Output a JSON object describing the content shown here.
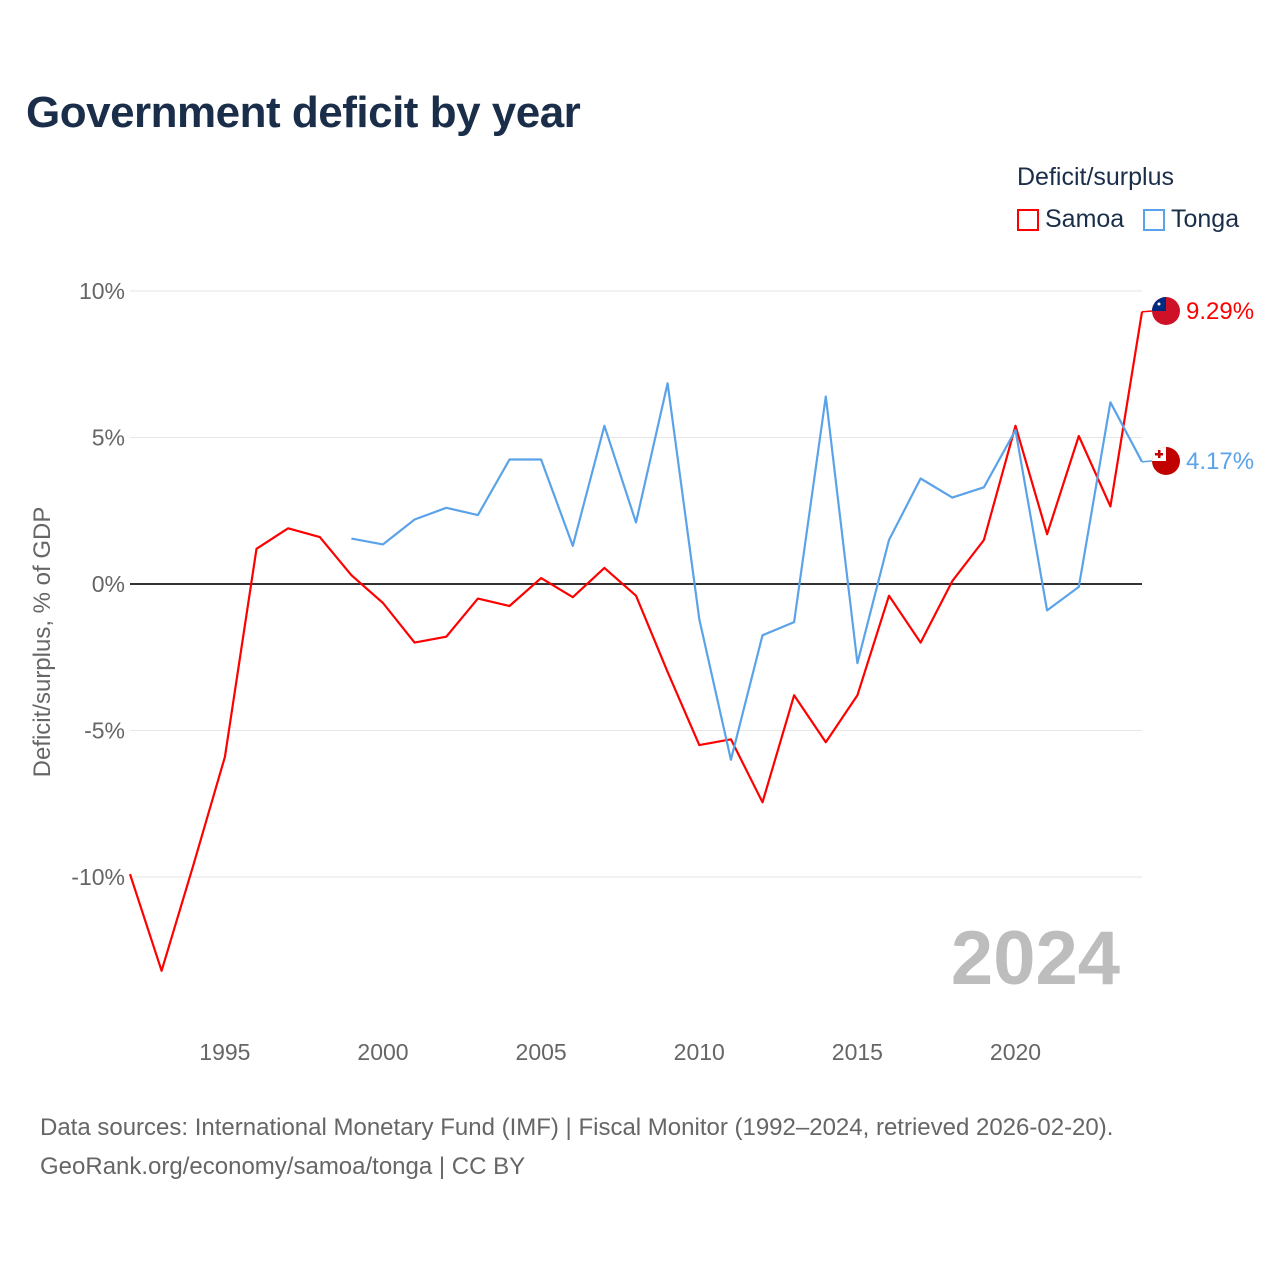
{
  "title": "Government deficit by year",
  "legend": {
    "title": "Deficit/surplus",
    "items": [
      {
        "name": "Samoa",
        "color": "#ff0000"
      },
      {
        "name": "Tonga",
        "color": "#5ba3e8"
      }
    ]
  },
  "footer": {
    "line1": "Data sources: International Monetary Fund (IMF) | Fiscal Monitor (1992–2024, retrieved 2026-02-20).",
    "line2": "GeoRank.org/economy/samoa/tonga | CC BY"
  },
  "chart_data": {
    "type": "line",
    "title": "Government deficit by year",
    "ylabel": "Deficit/surplus, % of GDP",
    "xlabel": "",
    "xlim": [
      1992,
      2024
    ],
    "ylim": [
      -13.5,
      10
    ],
    "xticks": [
      1995,
      2000,
      2005,
      2010,
      2015,
      2020
    ],
    "yticks": [
      {
        "v": 10,
        "label": "10%"
      },
      {
        "v": 5,
        "label": "5%"
      },
      {
        "v": 0,
        "label": "0%"
      },
      {
        "v": -5,
        "label": "-5%"
      },
      {
        "v": -10,
        "label": "-10%"
      }
    ],
    "year_label": "2024",
    "series": [
      {
        "name": "Samoa",
        "color": "#ff0000",
        "end_label": "9.29%",
        "x": [
          1992,
          1993,
          1994,
          1995,
          1996,
          1997,
          1998,
          1999,
          2000,
          2001,
          2002,
          2003,
          2004,
          2005,
          2006,
          2007,
          2008,
          2009,
          2010,
          2011,
          2012,
          2013,
          2014,
          2015,
          2016,
          2017,
          2018,
          2019,
          2020,
          2021,
          2022,
          2023,
          2024
        ],
        "values": [
          -9.9,
          -13.2,
          -9.6,
          -5.9,
          1.2,
          1.9,
          1.6,
          0.3,
          -0.65,
          -2.0,
          -1.8,
          -0.5,
          -0.75,
          0.2,
          -0.45,
          0.55,
          -0.4,
          -3.0,
          -5.5,
          -5.3,
          -7.45,
          -3.8,
          -5.4,
          -3.8,
          -0.4,
          -2.0,
          0.1,
          1.5,
          5.4,
          1.7,
          5.05,
          2.65,
          9.29
        ]
      },
      {
        "name": "Tonga",
        "color": "#5ba3e8",
        "end_label": "4.17%",
        "x": [
          1999,
          2000,
          2001,
          2002,
          2003,
          2004,
          2005,
          2006,
          2007,
          2008,
          2009,
          2010,
          2011,
          2012,
          2013,
          2014,
          2015,
          2016,
          2017,
          2018,
          2019,
          2020,
          2021,
          2022,
          2023,
          2024
        ],
        "values": [
          1.55,
          1.35,
          2.2,
          2.6,
          2.35,
          4.25,
          4.25,
          1.3,
          5.4,
          2.1,
          6.85,
          -1.2,
          -6.0,
          -1.75,
          -1.3,
          6.4,
          -2.7,
          1.5,
          3.6,
          2.95,
          3.3,
          5.25,
          -0.9,
          -0.1,
          6.2,
          4.17
        ]
      }
    ]
  }
}
